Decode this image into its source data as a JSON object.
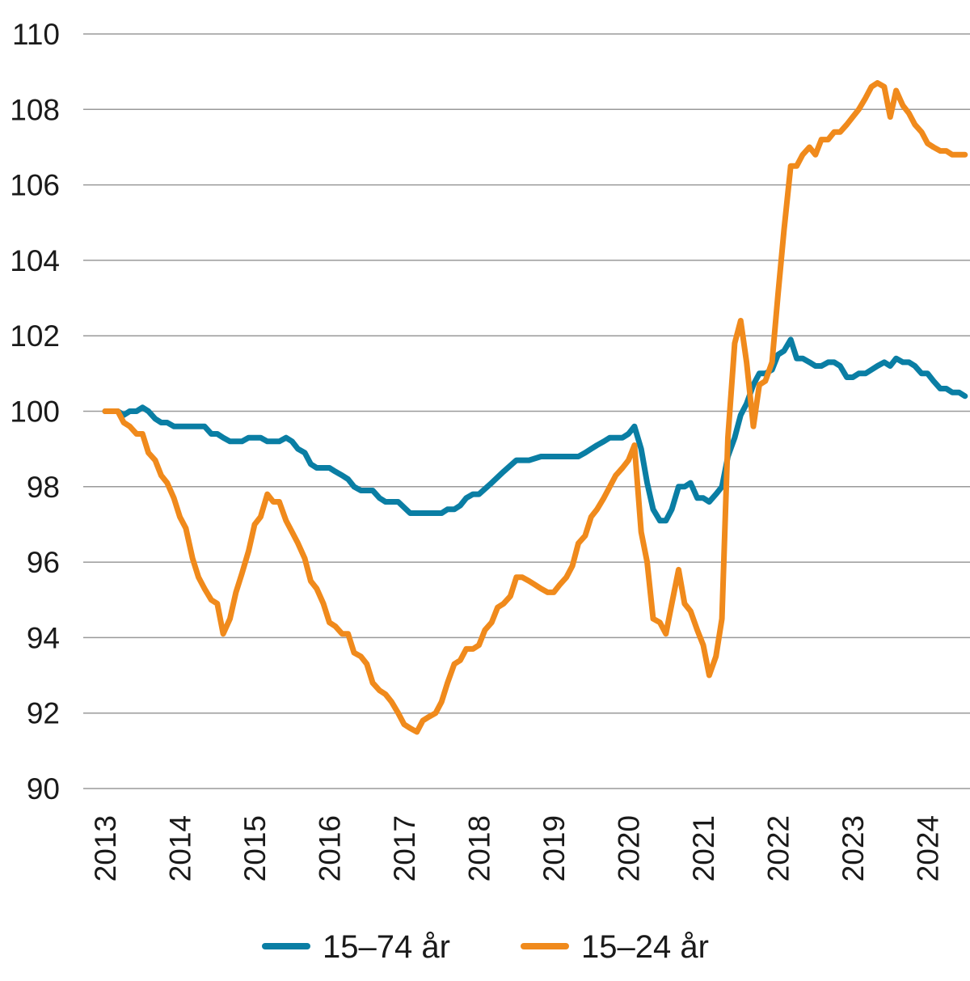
{
  "chart_data": {
    "type": "line",
    "title": "",
    "xlabel": "",
    "ylabel": "",
    "ylim": [
      90,
      110
    ],
    "xlim": [
      2013,
      2024.75
    ],
    "yticks": [
      90,
      92,
      94,
      96,
      98,
      100,
      102,
      104,
      106,
      108,
      110
    ],
    "xticks": [
      2013,
      2014,
      2015,
      2016,
      2017,
      2018,
      2019,
      2020,
      2021,
      2022,
      2023,
      2024
    ],
    "grid": "horizontal",
    "legend": "bottom",
    "series": [
      {
        "name": "15–74 år",
        "color": "#0a7ea4",
        "points": [
          [
            2013.0,
            100.0
          ],
          [
            2013.1,
            100.0
          ],
          [
            2013.17,
            100.0
          ],
          [
            2013.25,
            99.9
          ],
          [
            2013.33,
            100.0
          ],
          [
            2013.42,
            100.0
          ],
          [
            2013.5,
            100.1
          ],
          [
            2013.58,
            100.0
          ],
          [
            2013.67,
            99.8
          ],
          [
            2013.75,
            99.7
          ],
          [
            2013.83,
            99.7
          ],
          [
            2013.92,
            99.6
          ],
          [
            2014.0,
            99.6
          ],
          [
            2014.17,
            99.6
          ],
          [
            2014.33,
            99.6
          ],
          [
            2014.42,
            99.4
          ],
          [
            2014.5,
            99.4
          ],
          [
            2014.58,
            99.3
          ],
          [
            2014.67,
            99.2
          ],
          [
            2014.83,
            99.2
          ],
          [
            2014.92,
            99.3
          ],
          [
            2015.08,
            99.3
          ],
          [
            2015.17,
            99.2
          ],
          [
            2015.33,
            99.2
          ],
          [
            2015.42,
            99.3
          ],
          [
            2015.5,
            99.2
          ],
          [
            2015.58,
            99.0
          ],
          [
            2015.67,
            98.9
          ],
          [
            2015.75,
            98.6
          ],
          [
            2015.83,
            98.5
          ],
          [
            2016.0,
            98.5
          ],
          [
            2016.08,
            98.4
          ],
          [
            2016.17,
            98.3
          ],
          [
            2016.25,
            98.2
          ],
          [
            2016.33,
            98.0
          ],
          [
            2016.42,
            97.9
          ],
          [
            2016.58,
            97.9
          ],
          [
            2016.67,
            97.7
          ],
          [
            2016.75,
            97.6
          ],
          [
            2016.92,
            97.6
          ],
          [
            2017.08,
            97.3
          ],
          [
            2017.25,
            97.3
          ],
          [
            2017.5,
            97.3
          ],
          [
            2017.58,
            97.4
          ],
          [
            2017.67,
            97.4
          ],
          [
            2017.75,
            97.5
          ],
          [
            2017.83,
            97.7
          ],
          [
            2017.92,
            97.8
          ],
          [
            2018.0,
            97.8
          ],
          [
            2018.17,
            98.1
          ],
          [
            2018.33,
            98.4
          ],
          [
            2018.5,
            98.7
          ],
          [
            2018.67,
            98.7
          ],
          [
            2018.83,
            98.8
          ],
          [
            2019.0,
            98.8
          ],
          [
            2019.17,
            98.8
          ],
          [
            2019.33,
            98.8
          ],
          [
            2019.42,
            98.9
          ],
          [
            2019.5,
            99.0
          ],
          [
            2019.58,
            99.1
          ],
          [
            2019.67,
            99.2
          ],
          [
            2019.75,
            99.3
          ],
          [
            2019.92,
            99.3
          ],
          [
            2020.0,
            99.4
          ],
          [
            2020.08,
            99.6
          ],
          [
            2020.17,
            99.0
          ],
          [
            2020.25,
            98.1
          ],
          [
            2020.33,
            97.4
          ],
          [
            2020.42,
            97.1
          ],
          [
            2020.5,
            97.1
          ],
          [
            2020.58,
            97.4
          ],
          [
            2020.67,
            98.0
          ],
          [
            2020.75,
            98.0
          ],
          [
            2020.83,
            98.1
          ],
          [
            2020.92,
            97.7
          ],
          [
            2021.0,
            97.7
          ],
          [
            2021.08,
            97.6
          ],
          [
            2021.17,
            97.8
          ],
          [
            2021.25,
            98.0
          ],
          [
            2021.33,
            98.8
          ],
          [
            2021.42,
            99.3
          ],
          [
            2021.5,
            99.9
          ],
          [
            2021.58,
            100.2
          ],
          [
            2021.67,
            100.7
          ],
          [
            2021.75,
            101.0
          ],
          [
            2021.83,
            101.0
          ],
          [
            2021.92,
            101.1
          ],
          [
            2022.0,
            101.5
          ],
          [
            2022.08,
            101.6
          ],
          [
            2022.17,
            101.9
          ],
          [
            2022.25,
            101.4
          ],
          [
            2022.33,
            101.4
          ],
          [
            2022.42,
            101.3
          ],
          [
            2022.5,
            101.2
          ],
          [
            2022.58,
            101.2
          ],
          [
            2022.67,
            101.3
          ],
          [
            2022.75,
            101.3
          ],
          [
            2022.83,
            101.2
          ],
          [
            2022.92,
            100.9
          ],
          [
            2023.0,
            100.9
          ],
          [
            2023.08,
            101.0
          ],
          [
            2023.17,
            101.0
          ],
          [
            2023.25,
            101.1
          ],
          [
            2023.33,
            101.2
          ],
          [
            2023.42,
            101.3
          ],
          [
            2023.5,
            101.2
          ],
          [
            2023.58,
            101.4
          ],
          [
            2023.67,
            101.3
          ],
          [
            2023.75,
            101.3
          ],
          [
            2023.83,
            101.2
          ],
          [
            2023.92,
            101.0
          ],
          [
            2024.0,
            101.0
          ],
          [
            2024.08,
            100.8
          ],
          [
            2024.17,
            100.6
          ],
          [
            2024.25,
            100.6
          ],
          [
            2024.33,
            100.5
          ],
          [
            2024.42,
            100.5
          ],
          [
            2024.5,
            100.4
          ]
        ]
      },
      {
        "name": "15–24 år",
        "color": "#f08a1c",
        "points": [
          [
            2013.0,
            100.0
          ],
          [
            2013.1,
            100.0
          ],
          [
            2013.17,
            100.0
          ],
          [
            2013.25,
            99.7
          ],
          [
            2013.33,
            99.6
          ],
          [
            2013.42,
            99.4
          ],
          [
            2013.5,
            99.4
          ],
          [
            2013.58,
            98.9
          ],
          [
            2013.67,
            98.7
          ],
          [
            2013.75,
            98.3
          ],
          [
            2013.83,
            98.1
          ],
          [
            2013.92,
            97.7
          ],
          [
            2014.0,
            97.2
          ],
          [
            2014.08,
            96.9
          ],
          [
            2014.17,
            96.1
          ],
          [
            2014.25,
            95.6
          ],
          [
            2014.33,
            95.3
          ],
          [
            2014.42,
            95.0
          ],
          [
            2014.5,
            94.9
          ],
          [
            2014.58,
            94.1
          ],
          [
            2014.67,
            94.5
          ],
          [
            2014.75,
            95.2
          ],
          [
            2014.83,
            95.7
          ],
          [
            2014.92,
            96.3
          ],
          [
            2015.0,
            97.0
          ],
          [
            2015.08,
            97.2
          ],
          [
            2015.17,
            97.8
          ],
          [
            2015.25,
            97.6
          ],
          [
            2015.33,
            97.6
          ],
          [
            2015.42,
            97.1
          ],
          [
            2015.5,
            96.8
          ],
          [
            2015.58,
            96.5
          ],
          [
            2015.67,
            96.1
          ],
          [
            2015.75,
            95.5
          ],
          [
            2015.83,
            95.3
          ],
          [
            2015.92,
            94.9
          ],
          [
            2016.0,
            94.4
          ],
          [
            2016.08,
            94.3
          ],
          [
            2016.17,
            94.1
          ],
          [
            2016.25,
            94.1
          ],
          [
            2016.33,
            93.6
          ],
          [
            2016.42,
            93.5
          ],
          [
            2016.5,
            93.3
          ],
          [
            2016.58,
            92.8
          ],
          [
            2016.67,
            92.6
          ],
          [
            2016.75,
            92.5
          ],
          [
            2016.83,
            92.3
          ],
          [
            2016.92,
            92.0
          ],
          [
            2017.0,
            91.7
          ],
          [
            2017.08,
            91.6
          ],
          [
            2017.17,
            91.5
          ],
          [
            2017.25,
            91.8
          ],
          [
            2017.33,
            91.9
          ],
          [
            2017.42,
            92.0
          ],
          [
            2017.5,
            92.3
          ],
          [
            2017.58,
            92.8
          ],
          [
            2017.67,
            93.3
          ],
          [
            2017.75,
            93.4
          ],
          [
            2017.83,
            93.7
          ],
          [
            2017.92,
            93.7
          ],
          [
            2018.0,
            93.8
          ],
          [
            2018.08,
            94.2
          ],
          [
            2018.17,
            94.4
          ],
          [
            2018.25,
            94.8
          ],
          [
            2018.33,
            94.9
          ],
          [
            2018.42,
            95.1
          ],
          [
            2018.5,
            95.6
          ],
          [
            2018.58,
            95.6
          ],
          [
            2018.67,
            95.5
          ],
          [
            2018.75,
            95.4
          ],
          [
            2018.83,
            95.3
          ],
          [
            2018.92,
            95.2
          ],
          [
            2019.0,
            95.2
          ],
          [
            2019.08,
            95.4
          ],
          [
            2019.17,
            95.6
          ],
          [
            2019.25,
            95.9
          ],
          [
            2019.33,
            96.5
          ],
          [
            2019.42,
            96.7
          ],
          [
            2019.5,
            97.2
          ],
          [
            2019.58,
            97.4
          ],
          [
            2019.67,
            97.7
          ],
          [
            2019.75,
            98.0
          ],
          [
            2019.83,
            98.3
          ],
          [
            2019.92,
            98.5
          ],
          [
            2020.0,
            98.7
          ],
          [
            2020.08,
            99.1
          ],
          [
            2020.17,
            96.8
          ],
          [
            2020.25,
            96.0
          ],
          [
            2020.33,
            94.5
          ],
          [
            2020.42,
            94.4
          ],
          [
            2020.5,
            94.1
          ],
          [
            2020.58,
            94.9
          ],
          [
            2020.67,
            95.8
          ],
          [
            2020.75,
            94.9
          ],
          [
            2020.83,
            94.7
          ],
          [
            2020.92,
            94.2
          ],
          [
            2021.0,
            93.8
          ],
          [
            2021.08,
            93.0
          ],
          [
            2021.17,
            93.5
          ],
          [
            2021.25,
            94.5
          ],
          [
            2021.33,
            99.3
          ],
          [
            2021.42,
            101.8
          ],
          [
            2021.5,
            102.4
          ],
          [
            2021.58,
            101.3
          ],
          [
            2021.67,
            99.6
          ],
          [
            2021.75,
            100.7
          ],
          [
            2021.83,
            100.8
          ],
          [
            2021.92,
            101.3
          ],
          [
            2022.0,
            103.1
          ],
          [
            2022.08,
            104.8
          ],
          [
            2022.17,
            106.5
          ],
          [
            2022.25,
            106.5
          ],
          [
            2022.33,
            106.8
          ],
          [
            2022.42,
            107.0
          ],
          [
            2022.5,
            106.8
          ],
          [
            2022.58,
            107.2
          ],
          [
            2022.67,
            107.2
          ],
          [
            2022.75,
            107.4
          ],
          [
            2022.83,
            107.4
          ],
          [
            2022.92,
            107.6
          ],
          [
            2023.0,
            107.8
          ],
          [
            2023.08,
            108.0
          ],
          [
            2023.17,
            108.3
          ],
          [
            2023.25,
            108.6
          ],
          [
            2023.33,
            108.7
          ],
          [
            2023.42,
            108.6
          ],
          [
            2023.5,
            107.8
          ],
          [
            2023.58,
            108.5
          ],
          [
            2023.67,
            108.1
          ],
          [
            2023.75,
            107.9
          ],
          [
            2023.83,
            107.6
          ],
          [
            2023.92,
            107.4
          ],
          [
            2024.0,
            107.1
          ],
          [
            2024.08,
            107.0
          ],
          [
            2024.17,
            106.9
          ],
          [
            2024.25,
            106.9
          ],
          [
            2024.33,
            106.8
          ],
          [
            2024.42,
            106.8
          ],
          [
            2024.5,
            106.8
          ]
        ]
      }
    ]
  }
}
